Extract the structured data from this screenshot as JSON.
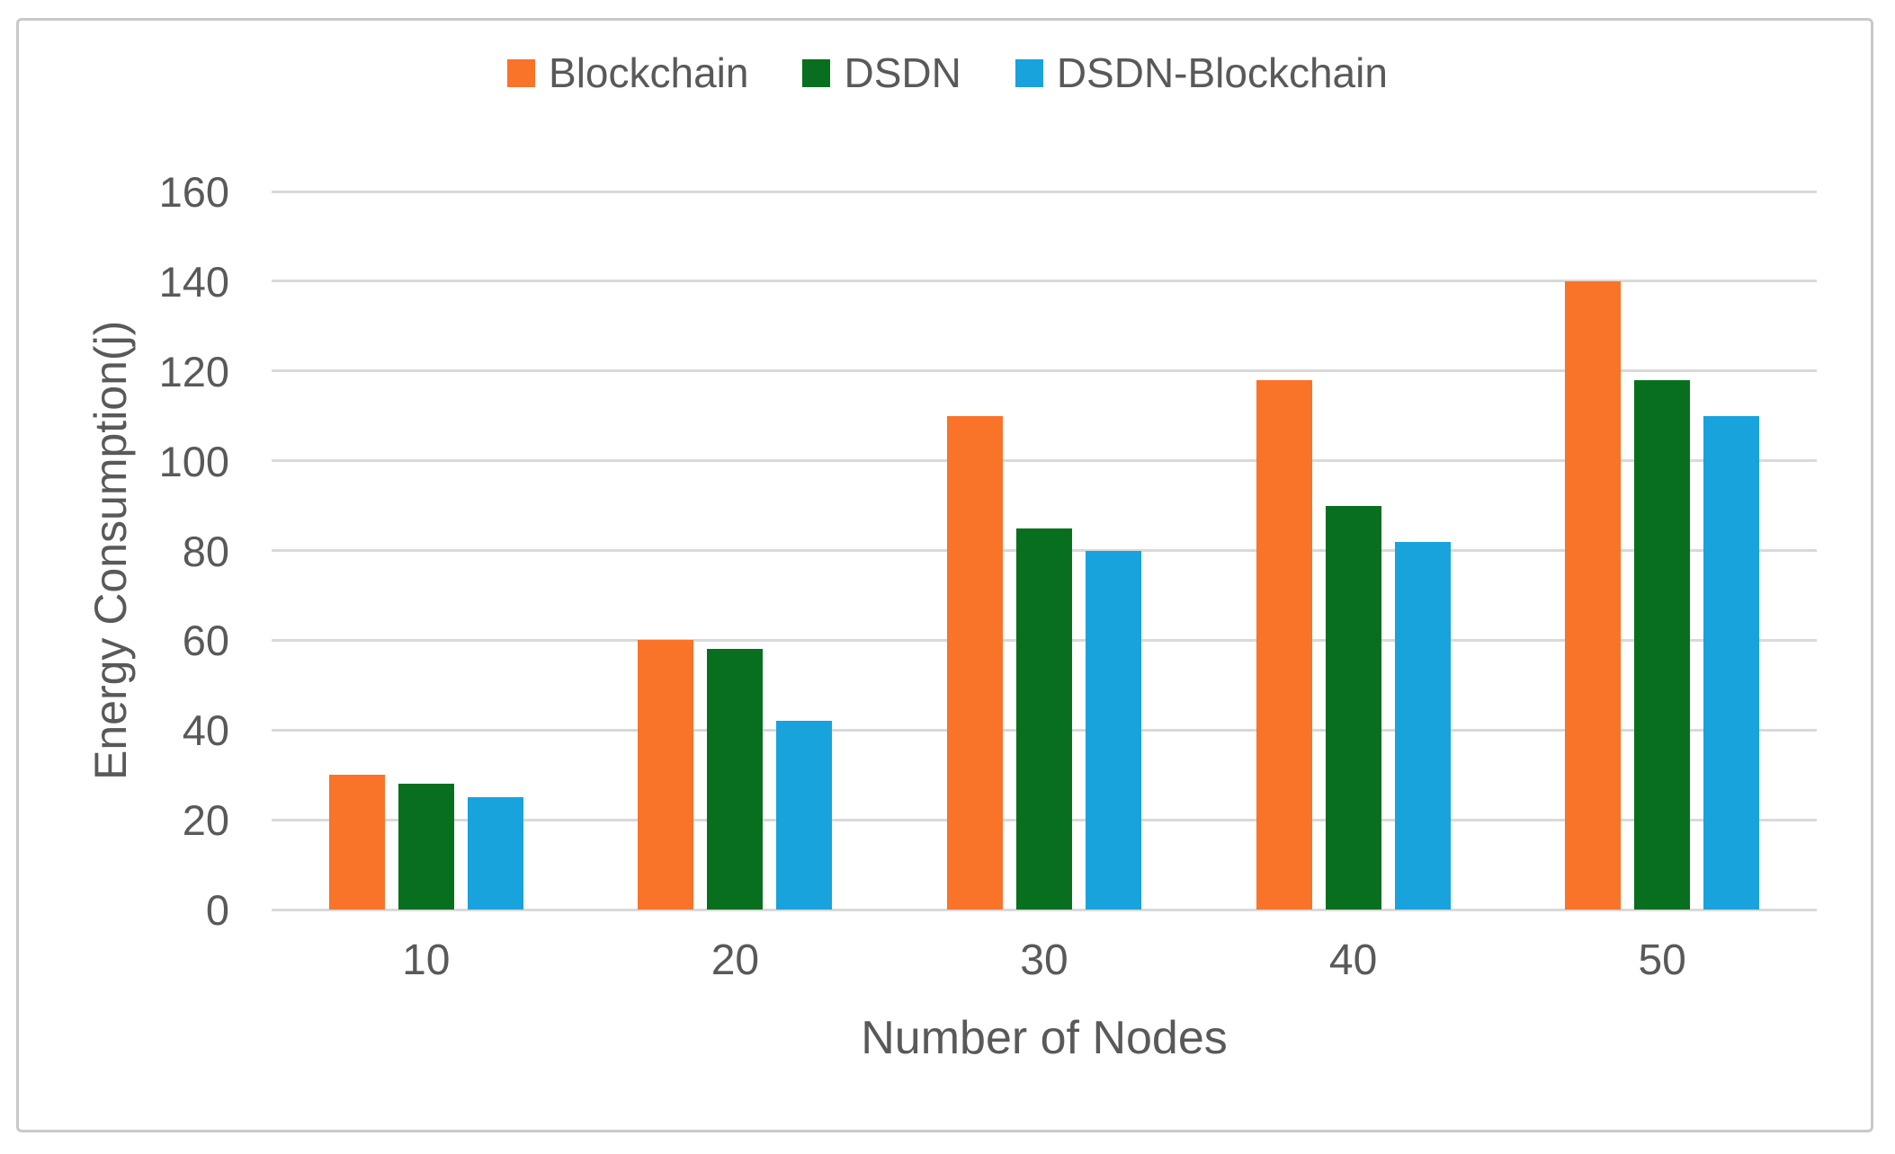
{
  "chart_data": {
    "type": "bar",
    "categories": [
      "10",
      "20",
      "30",
      "40",
      "50"
    ],
    "series": [
      {
        "name": "Blockchain",
        "color": "#f97329",
        "values": [
          30,
          60,
          110,
          118,
          140
        ]
      },
      {
        "name": "DSDN",
        "color": "#086f1f",
        "values": [
          28,
          58,
          85,
          90,
          118
        ]
      },
      {
        "name": "DSDN-Blockchain",
        "color": "#18a3dc",
        "values": [
          25,
          42,
          80,
          82,
          110
        ]
      }
    ],
    "title": "",
    "xlabel": "Number of Nodes",
    "ylabel": "Energy Consumption(j)",
    "ylim": [
      0,
      160
    ],
    "yticks": [
      0,
      20,
      40,
      60,
      80,
      100,
      120,
      140,
      160
    ],
    "grid": true,
    "legend_position": "top",
    "colors": {
      "text": "#595959",
      "gridline": "#d9d9d9",
      "figure_border": "#c9c9c9",
      "background": "#ffffff"
    }
  }
}
